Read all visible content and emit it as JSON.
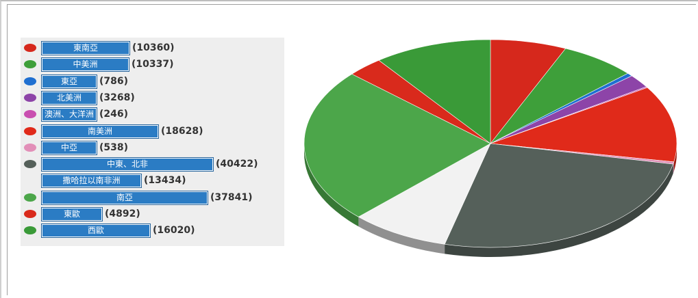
{
  "chart_data": {
    "type": "pie",
    "series": [
      {
        "label": "東南亞",
        "value": 10360,
        "color": "#d6281c"
      },
      {
        "label": "中美洲",
        "value": 10337,
        "color": "#3e9f3a"
      },
      {
        "label": "東亞",
        "value": 786,
        "color": "#1f6fd0"
      },
      {
        "label": "北美洲",
        "value": 3268,
        "color": "#8d44a8"
      },
      {
        "label": "澳洲、大洋洲",
        "value": 246,
        "color": "#c94fb0"
      },
      {
        "label": "南美洲",
        "value": 18628,
        "color": "#e02a1a"
      },
      {
        "label": "中亞",
        "value": 538,
        "color": "#e28fb8"
      },
      {
        "label": "中東、北非",
        "value": 40422,
        "color": "#55605a"
      },
      {
        "label": "撒哈拉以南非洲",
        "value": 13434,
        "color": "#f2f2f2"
      },
      {
        "label": "南亞",
        "value": 37841,
        "color": "#4ca64a"
      },
      {
        "label": "東歐",
        "value": 4892,
        "color": "#d92a1c"
      },
      {
        "label": "西歐",
        "value": 16020,
        "color": "#3a9a38"
      }
    ],
    "value_labels": [
      "(10360)",
      "(10337)",
      "(786)",
      "(3268)",
      "(246)",
      "(18628)",
      "(538)",
      "(40422)",
      "(13434)",
      "(37841)",
      "(4892)",
      "(16020)"
    ]
  }
}
